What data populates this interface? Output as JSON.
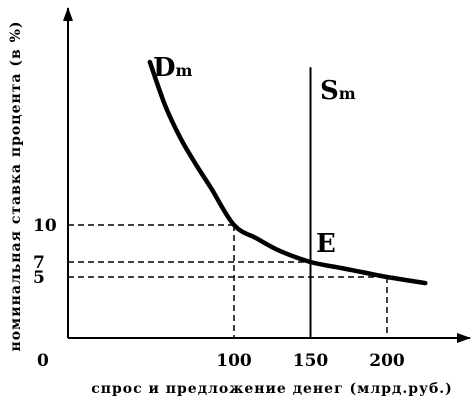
{
  "chart_data": {
    "type": "line",
    "ylabel": "номинальная ставка процента (в %)",
    "xlabel": "спрос и предложение денег (млрд.руб.)",
    "origin_label": "0",
    "xlim": [
      0,
      235
    ],
    "ylim": [
      0,
      20
    ],
    "x_ticks": [
      {
        "value": 100,
        "label": "100"
      },
      {
        "value": 150,
        "label": "150"
      },
      {
        "value": 200,
        "label": "200"
      }
    ],
    "y_ticks": [
      {
        "value": 10,
        "label": "10"
      },
      {
        "value": 7,
        "label": "7"
      },
      {
        "value": 5,
        "label": "5"
      }
    ],
    "series": [
      {
        "name": "Dm",
        "label_main": "D",
        "label_sub": "m",
        "points": [
          [
            45,
            17.5
          ],
          [
            55,
            15.5
          ],
          [
            65,
            14.0
          ],
          [
            75,
            12.8
          ],
          [
            85,
            11.7
          ],
          [
            100,
            10.0
          ],
          [
            115,
            8.9
          ],
          [
            130,
            7.9
          ],
          [
            150,
            7.0
          ],
          [
            170,
            6.2
          ],
          [
            185,
            5.6
          ],
          [
            200,
            5.0
          ],
          [
            225,
            4.5
          ]
        ]
      },
      {
        "name": "Sm",
        "label_main": "S",
        "label_sub": "m",
        "points": [
          [
            150,
            0
          ],
          [
            150,
            18.5
          ]
        ]
      }
    ],
    "equilibrium": {
      "label": "E",
      "x": 150,
      "y": 7
    },
    "reference_points": [
      {
        "x": 100,
        "y": 10
      },
      {
        "x": 150,
        "y": 7
      },
      {
        "x": 200,
        "y": 5
      }
    ]
  }
}
